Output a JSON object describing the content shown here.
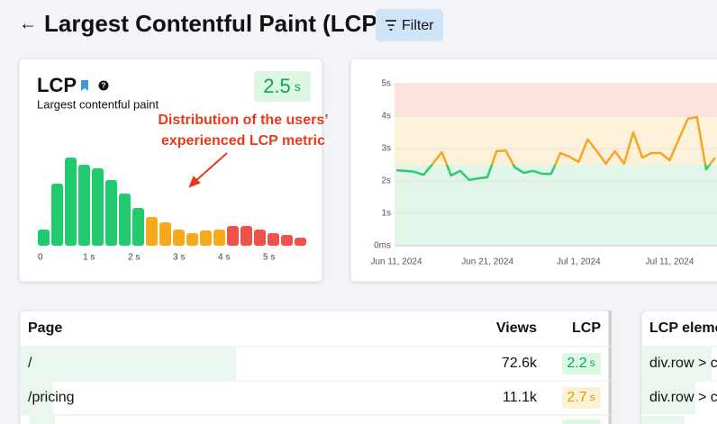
{
  "header": {
    "back": "←",
    "title": "Largest Contentful Paint (LCP)",
    "filter": "Filter"
  },
  "summary": {
    "title": "LCP",
    "subtitle": "Largest contentful paint",
    "value": 2.5,
    "unit": "s"
  },
  "annotation": [
    "Distribution of the users’",
    "experienced LCP metric"
  ],
  "chart_data": [
    {
      "type": "histogram",
      "bins": [
        0,
        0.3,
        0.6,
        0.9,
        1.2,
        1.5,
        1.8,
        2.1,
        2.4,
        2.7,
        3,
        3.3,
        3.6,
        3.9,
        4.2,
        4.5,
        4.8,
        5.1,
        5.4,
        5.7,
        6
      ],
      "values": [
        18,
        69,
        98,
        90,
        86,
        73,
        58,
        42,
        32,
        26,
        18,
        14,
        17,
        18,
        22,
        22,
        18,
        14,
        12,
        9
      ],
      "colors": [
        "#1fcb6c",
        "#1fcb6c",
        "#1fcb6c",
        "#1fcb6c",
        "#1fcb6c",
        "#1fcb6c",
        "#1fcb6c",
        "#1fcb6c",
        "#f7a81b",
        "#f7a81b",
        "#f7a81b",
        "#f7a81b",
        "#f7a81b",
        "#f7a81b",
        "#f2514b",
        "#f2514b",
        "#f2514b",
        "#f2514b",
        "#f2514b",
        "#f2514b"
      ],
      "xticks": [
        0,
        {
          "value": 1,
          "label": "1 s"
        },
        {
          "value": 2,
          "label": "2 s"
        },
        {
          "value": 3,
          "label": "3 s"
        },
        {
          "value": 4,
          "label": "4 s"
        },
        {
          "value": 5,
          "label": "5 s"
        }
      ]
    },
    {
      "type": "line",
      "x": [
        "2024-06-11",
        "2024-06-12",
        "2024-06-13",
        "2024-06-14",
        "2024-06-15",
        "2024-06-16",
        "2024-06-17",
        "2024-06-18",
        "2024-06-19",
        "2024-06-20",
        "2024-06-21",
        "2024-06-22",
        "2024-06-23",
        "2024-06-24",
        "2024-06-25",
        "2024-06-26",
        "2024-06-27",
        "2024-06-28",
        "2024-06-29",
        "2024-06-30",
        "2024-07-01",
        "2024-07-02",
        "2024-07-03",
        "2024-07-04",
        "2024-07-05",
        "2024-07-06",
        "2024-07-07",
        "2024-07-08",
        "2024-07-09",
        "2024-07-10",
        "2024-07-11",
        "2024-07-12",
        "2024-07-13",
        "2024-07-14",
        "2024-07-15",
        "2024-07-16"
      ],
      "values": [
        2.33,
        2.31,
        2.28,
        2.19,
        2.53,
        2.89,
        2.17,
        2.31,
        2.03,
        2.08,
        2.11,
        2.92,
        2.94,
        2.42,
        2.25,
        2.31,
        2.22,
        2.22,
        2.86,
        2.75,
        2.58,
        3.28,
        2.92,
        2.53,
        2.92,
        2.53,
        3.5,
        2.72,
        2.86,
        2.86,
        2.64,
        3.28,
        3.92,
        3.97,
        2.36,
        2.72
      ],
      "thresholds": [
        2.5,
        4
      ],
      "colors": [
        "#2ecc71",
        "#f5a623"
      ],
      "band_colors": [
        "#e1f6e8",
        "#fdf1da",
        "#fde4e1"
      ],
      "xlim": [
        "2024-06-11",
        "2024-07-16"
      ],
      "ylim": [
        0,
        5
      ],
      "yticks": [
        {
          "value": 0,
          "label": "0ms"
        },
        {
          "value": 1,
          "label": "1s"
        },
        {
          "value": 2,
          "label": "2s"
        },
        {
          "value": 3,
          "label": "3s"
        },
        {
          "value": 4,
          "label": "4s"
        },
        {
          "value": 5,
          "label": "5s"
        }
      ],
      "xticks": [
        {
          "value": "2024-06-11",
          "label": "Jun 11, 2024"
        },
        {
          "value": "2024-06-21",
          "label": "Jun 21, 2024"
        },
        {
          "value": "2024-07-01",
          "label": "Jul 1, 2024"
        },
        {
          "value": "2024-07-11",
          "label": "Jul 11, 2024"
        }
      ],
      "grid": true
    }
  ],
  "table": {
    "headers": [
      "Page",
      "Views",
      "LCP"
    ],
    "rows": [
      {
        "page": "/",
        "views": 72600,
        "views_label": "72.6k",
        "lcp": 2.2,
        "unit": "s"
      },
      {
        "page": "/pricing",
        "views": 11100,
        "views_label": "11.1k",
        "lcp": 2.7,
        "unit": "s"
      }
    ]
  },
  "table2": {
    "header": "LCP eleme",
    "rows": [
      "div.row > c",
      "div.row > c"
    ]
  }
}
